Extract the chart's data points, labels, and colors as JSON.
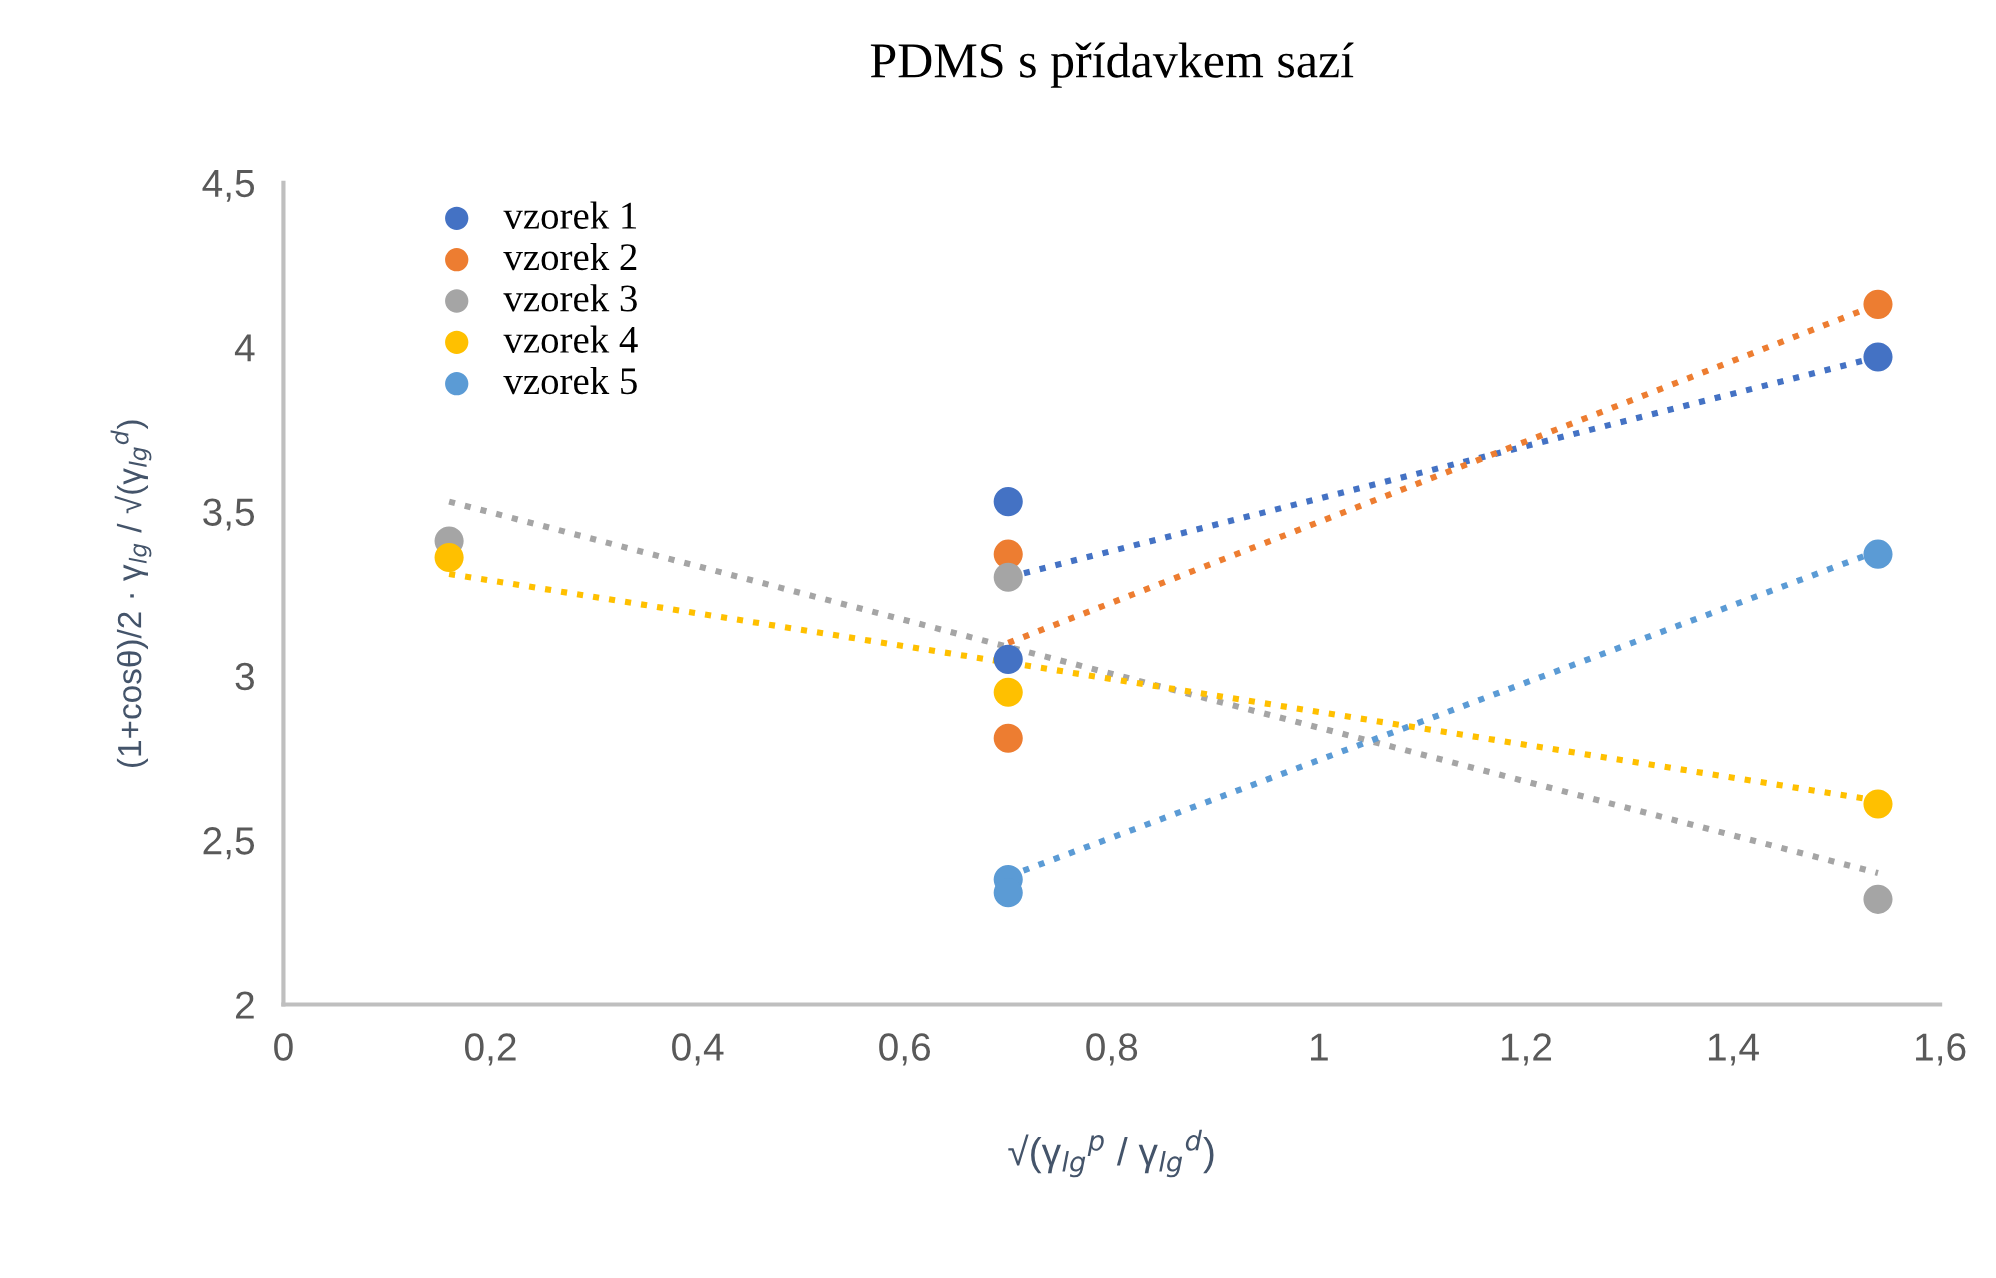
{
  "chart_data": {
    "type": "scatter",
    "title": "PDMS s přídavkem sazí",
    "xlabel": "√(γ$_{lg}$$^{p}$ / γ$_{lg}$$^{d}$)",
    "ylabel": "(1+cosθ)/2 · γ$_{lg}$ / √(γ$_{lg}$$^{d}$)",
    "xlim": [
      0,
      1.6
    ],
    "xticks": [
      0,
      {
        "value": 0.2,
        "label": "0,2"
      },
      {
        "value": 0.4,
        "label": "0,4"
      },
      {
        "value": 0.6,
        "label": "0,6"
      },
      {
        "value": 0.8,
        "label": "0,8"
      },
      1,
      {
        "value": 1.2,
        "label": "1,2"
      },
      {
        "value": 1.4,
        "label": "1,4"
      },
      {
        "value": 1.6,
        "label": "1,6"
      }
    ],
    "ylim": [
      2,
      4.5
    ],
    "yticks": [
      2,
      {
        "value": 2.5,
        "label": "2,5"
      },
      3,
      {
        "value": 3.5,
        "label": "3,5"
      },
      4,
      {
        "value": 4.5,
        "label": "4,5"
      }
    ],
    "grid": false,
    "legend": "top left",
    "marker": "circle",
    "series": [
      {
        "name": "vzorek 1",
        "color": "#4472c4",
        "x": [
          0.7,
          0.7,
          1.54
        ],
        "values": [
          3.53,
          3.05,
          3.97
        ]
      },
      {
        "name": "vzorek 2",
        "color": "#ed7d31",
        "x": [
          0.7,
          0.7,
          1.54
        ],
        "values": [
          3.37,
          2.81,
          4.13
        ]
      },
      {
        "name": "vzorek 3",
        "color": "#a5a5a5",
        "x": [
          0.16,
          0.7,
          1.54
        ],
        "values": [
          3.41,
          3.3,
          2.32
        ]
      },
      {
        "name": "vzorek 4",
        "color": "#ffc000",
        "x": [
          0.16,
          0.7,
          1.54
        ],
        "values": [
          3.36,
          2.95,
          2.61
        ]
      },
      {
        "name": "vzorek 5",
        "color": "#5b9bd5",
        "x": [
          0.7,
          0.7,
          1.54
        ],
        "values": [
          2.38,
          2.34,
          3.37
        ]
      },
      {
        "type": "line",
        "marker": "none",
        "line_style": "dotted",
        "color": "#4472c4",
        "x": [
          0.7,
          1.54
        ],
        "values": [
          3.3,
          3.97
        ]
      },
      {
        "type": "line",
        "marker": "none",
        "line_style": "dotted",
        "color": "#ed7d31",
        "x": [
          0.7,
          1.54
        ],
        "values": [
          3.1,
          4.13
        ]
      },
      {
        "type": "line",
        "marker": "none",
        "line_style": "dotted",
        "color": "#a5a5a5",
        "x": [
          0.16,
          1.54
        ],
        "values": [
          3.53,
          2.4
        ]
      },
      {
        "type": "line",
        "marker": "none",
        "line_style": "dotted",
        "color": "#ffc000",
        "x": [
          0.16,
          1.54
        ],
        "values": [
          3.31,
          2.62
        ]
      },
      {
        "type": "line",
        "marker": "none",
        "line_style": "dotted",
        "color": "#5b9bd5",
        "x": [
          0.7,
          1.54
        ],
        "values": [
          2.39,
          3.38
        ]
      }
    ]
  }
}
